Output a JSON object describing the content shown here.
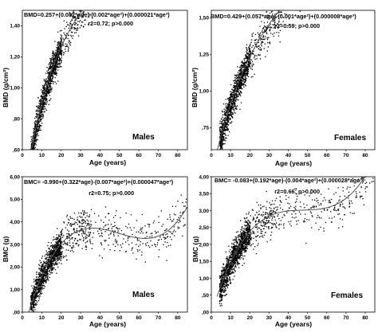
{
  "chart_data": [
    {
      "type": "scatter",
      "title": "",
      "equation": "BMD=0.257+(0.082*age)-(0.002*age²)+(0.000021*age³)",
      "stats": "r2=0.72; p>0.000",
      "label": "Males",
      "xlabel": "Age (years)",
      "ylabel": "BMD (g/cm²)",
      "xlim": [
        0,
        85
      ],
      "ylim": [
        0.6,
        1.5
      ],
      "xticks": [
        "0",
        "10",
        "20",
        "30",
        "40",
        "50",
        "60",
        "70",
        "80"
      ],
      "yticks": [
        ",60",
        ",80",
        "1,00",
        "1,20",
        "1,40"
      ],
      "ytick_values": [
        0.6,
        0.8,
        1.0,
        1.2,
        1.4
      ],
      "fit_coefficients": [
        0.257,
        0.082,
        -0.002,
        2.1e-05
      ],
      "fit_range": [
        4,
        85
      ],
      "point_color": "#000000",
      "curve_color": "#555555",
      "grid": false
    },
    {
      "type": "scatter",
      "title": "",
      "equation": "BMD=0.429+(0.057*age)-(0.001*age²)+(0.000008*age³)",
      "stats": "r2=0.59; p>0.000",
      "label": "Females",
      "xlabel": "Age (years)",
      "ylabel": "BMD (g/cm²)",
      "xlim": [
        0,
        85
      ],
      "ylim": [
        0.6,
        1.55
      ],
      "xticks": [
        "0",
        "10",
        "20",
        "30",
        "40",
        "50",
        "60",
        "70",
        "80"
      ],
      "yticks": [
        ",75",
        "1,00",
        "1,25",
        "1,50"
      ],
      "ytick_values": [
        0.75,
        1.0,
        1.25,
        1.5
      ],
      "fit_coefficients": [
        0.429,
        0.057,
        -0.001,
        8e-06
      ],
      "fit_range": [
        3,
        85
      ],
      "point_color": "#000000",
      "curve_color": "#555555",
      "grid": false
    },
    {
      "type": "scatter",
      "title": "",
      "equation": "BMC= -0.990+(0.322*age)-(0.007*age²)+(0.000047*age³)",
      "stats": "r2=0.75; p>0.000",
      "label": "Males",
      "xlabel": "Age (years)",
      "ylabel": "BMC (g)",
      "xlim": [
        0,
        85
      ],
      "ylim": [
        0,
        6
      ],
      "xticks": [
        "0",
        "10",
        "20",
        "30",
        "40",
        "50",
        "60",
        "70",
        "80"
      ],
      "yticks": [
        ",00",
        "1,00",
        "2,00",
        "3,00",
        "4,00",
        "5,00",
        "6,00"
      ],
      "ytick_values": [
        0,
        1,
        2,
        3,
        4,
        5,
        6
      ],
      "fit_coefficients": [
        -0.99,
        0.322,
        -0.007,
        4.7e-05
      ],
      "fit_range": [
        3,
        85
      ],
      "point_color": "#000000",
      "curve_color": "#555555",
      "grid": false
    },
    {
      "type": "scatter",
      "title": "",
      "equation": "BMC= -0.083+(0.192*age)-(0.004*age²)+(0.000028*age³)",
      "stats": "r2=0.66; p>0.000",
      "label": "Females",
      "xlabel": "Age (years)",
      "ylabel": "BMC (g)",
      "xlim": [
        0,
        85
      ],
      "ylim": [
        0,
        4
      ],
      "xticks": [
        "0",
        "10",
        "20",
        "30",
        "40",
        "50",
        "60",
        "70",
        "80"
      ],
      "yticks": [
        ",00",
        ",50",
        "1,00",
        "1,50",
        "2,00",
        "2,50",
        "3,00",
        "3,50",
        "4,00"
      ],
      "ytick_values": [
        0,
        0.5,
        1,
        1.5,
        2,
        2.5,
        3,
        3.5,
        4
      ],
      "fit_coefficients": [
        -0.083,
        0.192,
        -0.004,
        2.8e-05
      ],
      "fit_range": [
        3,
        85
      ],
      "point_color": "#000000",
      "curve_color": "#555555",
      "grid": false
    }
  ]
}
